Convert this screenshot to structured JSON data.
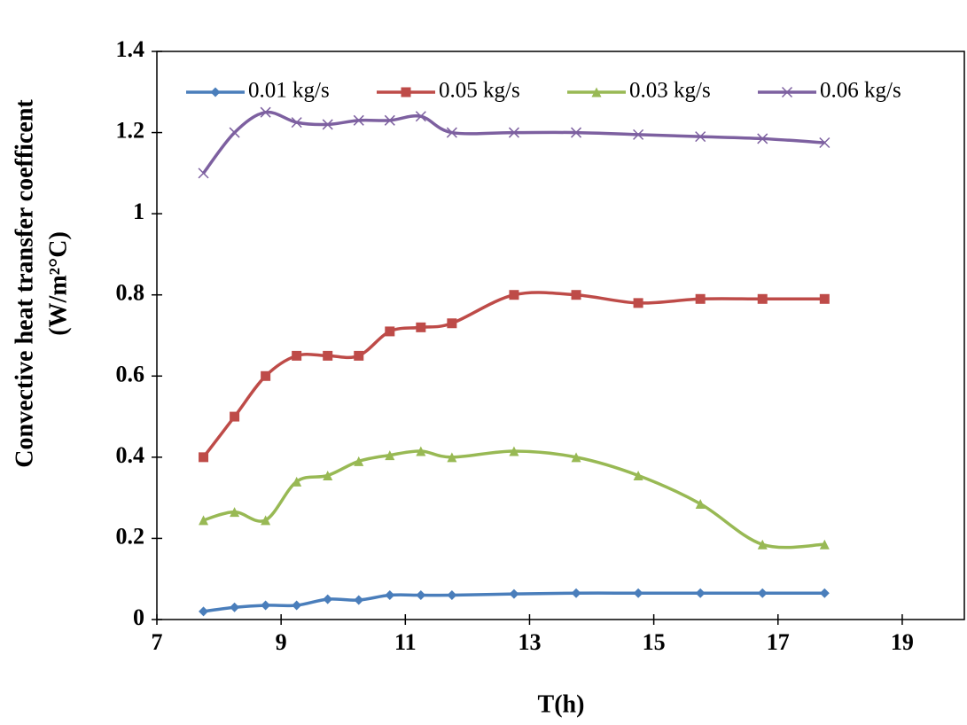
{
  "chart_data": {
    "type": "line",
    "xlabel": "T(h)",
    "ylabel": [
      "Convective heat  transfer coefficent",
      "(W/m²°C)"
    ],
    "x": [
      7.75,
      8.25,
      8.75,
      9.25,
      9.75,
      10.25,
      10.75,
      11.25,
      11.75,
      12.75,
      13.75,
      14.75,
      15.75,
      16.75,
      17.75
    ],
    "series": [
      {
        "name": "0.01 kg/s",
        "color": "#4a7ebb",
        "marker": "diamond",
        "values": [
          0.02,
          0.03,
          0.035,
          0.035,
          0.05,
          0.048,
          0.06,
          0.06,
          0.06,
          0.063,
          0.065,
          0.065,
          0.065,
          0.065,
          0.065
        ]
      },
      {
        "name": "0.05 kg/s",
        "color": "#be4b48",
        "marker": "square",
        "values": [
          0.4,
          0.5,
          0.6,
          0.65,
          0.65,
          0.65,
          0.71,
          0.72,
          0.73,
          0.8,
          0.8,
          0.78,
          0.79,
          0.79,
          0.79
        ]
      },
      {
        "name": "0.03 kg/s",
        "color": "#98b954",
        "marker": "triangle",
        "values": [
          0.245,
          0.265,
          0.245,
          0.34,
          0.355,
          0.39,
          0.405,
          0.415,
          0.4,
          0.415,
          0.4,
          0.355,
          0.285,
          0.185,
          0.185
        ]
      },
      {
        "name": "0.06 kg/s",
        "color": "#7d60a0",
        "marker": "x",
        "values": [
          1.1,
          1.2,
          1.25,
          1.225,
          1.22,
          1.23,
          1.23,
          1.24,
          1.2,
          1.2,
          1.2,
          1.195,
          1.19,
          1.185,
          1.175
        ]
      }
    ],
    "xlim": [
      7,
      20
    ],
    "xticks": [
      7,
      9,
      11,
      13,
      15,
      17,
      19
    ],
    "ylim": [
      0,
      1.4
    ],
    "yticks": [
      0,
      0.2,
      0.4,
      0.6,
      0.8,
      1,
      1.2,
      1.4
    ],
    "grid": false,
    "smooth": true,
    "legend": "top"
  }
}
